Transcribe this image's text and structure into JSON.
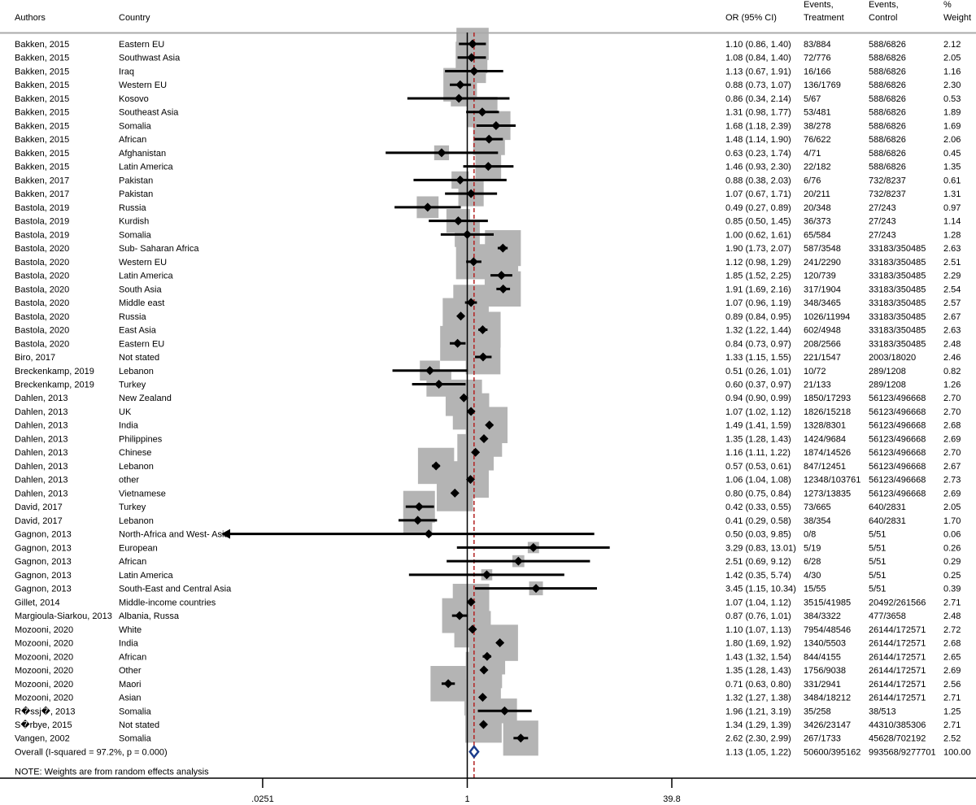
{
  "chart_data": {
    "type": "forest",
    "headers": {
      "authors": "Authors",
      "country": "Country",
      "or_ci": "OR (95% CI)",
      "events_treatment": [
        "Events,",
        "Treatment"
      ],
      "events_control": [
        "Events,",
        "Control"
      ],
      "weight": [
        "%",
        "Weight"
      ]
    },
    "rows": [
      {
        "author": "Bakken, 2015",
        "country": "Eastern EU",
        "or": 1.1,
        "lo": 0.86,
        "hi": 1.4,
        "or_text": "1.10 (0.86, 1.40)",
        "treat": "83/884",
        "control": "588/6826",
        "weight": "2.12"
      },
      {
        "author": "Bakken, 2015",
        "country": "Southwast Asia",
        "or": 1.08,
        "lo": 0.84,
        "hi": 1.4,
        "or_text": "1.08 (0.84, 1.40)",
        "treat": "72/776",
        "control": "588/6826",
        "weight": "2.05"
      },
      {
        "author": "Bakken, 2015",
        "country": "Iraq",
        "or": 1.13,
        "lo": 0.67,
        "hi": 1.91,
        "or_text": "1.13 (0.67, 1.91)",
        "treat": "16/166",
        "control": "588/6826",
        "weight": "1.16"
      },
      {
        "author": "Bakken, 2015",
        "country": "Western EU",
        "or": 0.88,
        "lo": 0.73,
        "hi": 1.07,
        "or_text": "0.88 (0.73, 1.07)",
        "treat": "136/1769",
        "control": "588/6826",
        "weight": "2.30"
      },
      {
        "author": "Bakken, 2015",
        "country": "Kosovo",
        "or": 0.86,
        "lo": 0.34,
        "hi": 2.14,
        "or_text": "0.86 (0.34, 2.14)",
        "treat": "5/67",
        "control": "588/6826",
        "weight": "0.53"
      },
      {
        "author": "Bakken, 2015",
        "country": "Southeast Asia",
        "or": 1.31,
        "lo": 0.98,
        "hi": 1.77,
        "or_text": "1.31 (0.98, 1.77)",
        "treat": "53/481",
        "control": "588/6826",
        "weight": "1.89"
      },
      {
        "author": "Bakken, 2015",
        "country": "Somalia",
        "or": 1.68,
        "lo": 1.18,
        "hi": 2.39,
        "or_text": "1.68 (1.18, 2.39)",
        "treat": "38/278",
        "control": "588/6826",
        "weight": "1.69"
      },
      {
        "author": "Bakken, 2015",
        "country": "African",
        "or": 1.48,
        "lo": 1.14,
        "hi": 1.9,
        "or_text": "1.48 (1.14, 1.90)",
        "treat": "76/622",
        "control": "588/6826",
        "weight": "2.06"
      },
      {
        "author": "Bakken, 2015",
        "country": "Afghanistan",
        "or": 0.63,
        "lo": 0.23,
        "hi": 1.74,
        "or_text": "0.63 (0.23, 1.74)",
        "treat": "4/71",
        "control": "588/6826",
        "weight": "0.45"
      },
      {
        "author": "Bakken, 2015",
        "country": "Latin America",
        "or": 1.46,
        "lo": 0.93,
        "hi": 2.3,
        "or_text": "1.46 (0.93, 2.30)",
        "treat": "22/182",
        "control": "588/6826",
        "weight": "1.35"
      },
      {
        "author": "Bakken, 2017",
        "country": "Pakistan",
        "or": 0.88,
        "lo": 0.38,
        "hi": 2.03,
        "or_text": "0.88 (0.38, 2.03)",
        "treat": "6/76",
        "control": "732/8237",
        "weight": "0.61"
      },
      {
        "author": "Bakken, 2017",
        "country": "Pakistan",
        "or": 1.07,
        "lo": 0.67,
        "hi": 1.71,
        "or_text": "1.07 (0.67, 1.71)",
        "treat": "20/211",
        "control": "732/8237",
        "weight": "1.31"
      },
      {
        "author": "Bastola, 2019",
        "country": "Russia",
        "or": 0.49,
        "lo": 0.27,
        "hi": 0.89,
        "or_text": "0.49 (0.27, 0.89)",
        "treat": "20/348",
        "control": "27/243",
        "weight": "0.97"
      },
      {
        "author": "Bastola, 2019",
        "country": "Kurdish",
        "or": 0.85,
        "lo": 0.5,
        "hi": 1.45,
        "or_text": "0.85 (0.50, 1.45)",
        "treat": "36/373",
        "control": "27/243",
        "weight": "1.14"
      },
      {
        "author": "Bastola, 2019",
        "country": "Somalia",
        "or": 1.0,
        "lo": 0.62,
        "hi": 1.61,
        "or_text": "1.00 (0.62, 1.61)",
        "treat": "65/584",
        "control": "27/243",
        "weight": "1.28"
      },
      {
        "author": "Bastola, 2020",
        "country": "Sub- Saharan Africa",
        "or": 1.9,
        "lo": 1.73,
        "hi": 2.07,
        "or_text": "1.90 (1.73, 2.07)",
        "treat": "587/3548",
        "control": "33183/350485",
        "weight": "2.63"
      },
      {
        "author": "Bastola, 2020",
        "country": "Western EU",
        "or": 1.12,
        "lo": 0.98,
        "hi": 1.29,
        "or_text": "1.12 (0.98, 1.29)",
        "treat": "241/2290",
        "control": "33183/350485",
        "weight": "2.51"
      },
      {
        "author": "Bastola, 2020",
        "country": "Latin America",
        "or": 1.85,
        "lo": 1.52,
        "hi": 2.25,
        "or_text": "1.85 (1.52, 2.25)",
        "treat": "120/739",
        "control": "33183/350485",
        "weight": "2.29"
      },
      {
        "author": "Bastola, 2020",
        "country": "South Asia",
        "or": 1.91,
        "lo": 1.69,
        "hi": 2.16,
        "or_text": "1.91 (1.69, 2.16)",
        "treat": "317/1904",
        "control": "33183/350485",
        "weight": "2.54"
      },
      {
        "author": "Bastola, 2020",
        "country": "Middle east",
        "or": 1.07,
        "lo": 0.96,
        "hi": 1.19,
        "or_text": "1.07 (0.96, 1.19)",
        "treat": "348/3465",
        "control": "33183/350485",
        "weight": "2.57"
      },
      {
        "author": "Bastola, 2020",
        "country": "Russia",
        "or": 0.89,
        "lo": 0.84,
        "hi": 0.95,
        "or_text": "0.89 (0.84, 0.95)",
        "treat": "1026/11994",
        "control": "33183/350485",
        "weight": "2.67"
      },
      {
        "author": "Bastola, 2020",
        "country": "East Asia",
        "or": 1.32,
        "lo": 1.22,
        "hi": 1.44,
        "or_text": "1.32 (1.22, 1.44)",
        "treat": "602/4948",
        "control": "33183/350485",
        "weight": "2.63"
      },
      {
        "author": "Bastola, 2020",
        "country": "Eastern EU",
        "or": 0.84,
        "lo": 0.73,
        "hi": 0.97,
        "or_text": "0.84 (0.73, 0.97)",
        "treat": "208/2566",
        "control": "33183/350485",
        "weight": "2.48"
      },
      {
        "author": "Biro, 2017",
        "country": "Not stated",
        "or": 1.33,
        "lo": 1.15,
        "hi": 1.55,
        "or_text": "1.33 (1.15, 1.55)",
        "treat": "221/1547",
        "control": "2003/18020",
        "weight": "2.46"
      },
      {
        "author": "Breckenkamp, 2019",
        "country": "Lebanon",
        "or": 0.51,
        "lo": 0.26,
        "hi": 1.01,
        "or_text": "0.51 (0.26, 1.01)",
        "treat": "10/72",
        "control": "289/1208",
        "weight": "0.82"
      },
      {
        "author": "Breckenkamp, 2019",
        "country": "Turkey",
        "or": 0.6,
        "lo": 0.37,
        "hi": 0.97,
        "or_text": "0.60 (0.37, 0.97)",
        "treat": "21/133",
        "control": "289/1208",
        "weight": "1.26"
      },
      {
        "author": "Dahlen, 2013",
        "country": "New Zealand",
        "or": 0.94,
        "lo": 0.9,
        "hi": 0.99,
        "or_text": "0.94 (0.90, 0.99)",
        "treat": "1850/17293",
        "control": "56123/496668",
        "weight": "2.70"
      },
      {
        "author": "Dahlen, 2013",
        "country": "UK",
        "or": 1.07,
        "lo": 1.02,
        "hi": 1.12,
        "or_text": "1.07 (1.02, 1.12)",
        "treat": "1826/15218",
        "control": "56123/496668",
        "weight": "2.70"
      },
      {
        "author": "Dahlen, 2013",
        "country": "India",
        "or": 1.49,
        "lo": 1.41,
        "hi": 1.59,
        "or_text": "1.49 (1.41, 1.59)",
        "treat": "1328/8301",
        "control": "56123/496668",
        "weight": "2.68"
      },
      {
        "author": "Dahlen, 2013",
        "country": "Philippines",
        "or": 1.35,
        "lo": 1.28,
        "hi": 1.43,
        "or_text": "1.35 (1.28, 1.43)",
        "treat": "1424/9684",
        "control": "56123/496668",
        "weight": "2.69"
      },
      {
        "author": "Dahlen, 2013",
        "country": "Chinese",
        "or": 1.16,
        "lo": 1.11,
        "hi": 1.22,
        "or_text": "1.16 (1.11, 1.22)",
        "treat": "1874/14526",
        "control": "56123/496668",
        "weight": "2.70"
      },
      {
        "author": "Dahlen, 2013",
        "country": "Lebanon",
        "or": 0.57,
        "lo": 0.53,
        "hi": 0.61,
        "or_text": "0.57 (0.53, 0.61)",
        "treat": "847/12451",
        "control": "56123/496668",
        "weight": "2.67"
      },
      {
        "author": "Dahlen, 2013",
        "country": "other",
        "or": 1.06,
        "lo": 1.04,
        "hi": 1.08,
        "or_text": "1.06 (1.04, 1.08)",
        "treat": "12348/103761",
        "control": "56123/496668",
        "weight": "2.73"
      },
      {
        "author": "Dahlen, 2013",
        "country": "Vietnamese",
        "or": 0.8,
        "lo": 0.75,
        "hi": 0.84,
        "or_text": "0.80 (0.75, 0.84)",
        "treat": "1273/13835",
        "control": "56123/496668",
        "weight": "2.69"
      },
      {
        "author": "David, 2017",
        "country": "Turkey",
        "or": 0.42,
        "lo": 0.33,
        "hi": 0.55,
        "or_text": "0.42 (0.33, 0.55)",
        "treat": "73/665",
        "control": "640/2831",
        "weight": "2.05"
      },
      {
        "author": "David, 2017",
        "country": "Lebanon",
        "or": 0.41,
        "lo": 0.29,
        "hi": 0.58,
        "or_text": "0.41 (0.29, 0.58)",
        "treat": "38/354",
        "control": "640/2831",
        "weight": "1.70"
      },
      {
        "author": "Gagnon, 2013",
        "country": "North-Africa and West- Asia",
        "or": 0.5,
        "lo": 0.03,
        "hi": 9.85,
        "or_text": "0.50 (0.03, 9.85)",
        "treat": "0/8",
        "control": "5/51",
        "weight": "0.06",
        "arrow_left": true
      },
      {
        "author": "Gagnon, 2013",
        "country": "European",
        "or": 3.29,
        "lo": 0.83,
        "hi": 13.01,
        "or_text": "3.29 (0.83, 13.01)",
        "treat": "5/19",
        "control": "5/51",
        "weight": "0.26"
      },
      {
        "author": "Gagnon, 2013",
        "country": "African",
        "or": 2.51,
        "lo": 0.69,
        "hi": 9.12,
        "or_text": "2.51 (0.69, 9.12)",
        "treat": "6/28",
        "control": "5/51",
        "weight": "0.29"
      },
      {
        "author": "Gagnon, 2013",
        "country": "Latin America",
        "or": 1.42,
        "lo": 0.35,
        "hi": 5.74,
        "or_text": "1.42 (0.35, 5.74)",
        "treat": "4/30",
        "control": "5/51",
        "weight": "0.25"
      },
      {
        "author": "Gagnon, 2013",
        "country": "South-East and Central Asia",
        "or": 3.45,
        "lo": 1.15,
        "hi": 10.34,
        "or_text": "3.45 (1.15, 10.34)",
        "treat": "15/55",
        "control": "5/51",
        "weight": "0.39"
      },
      {
        "author": "Gillet, 2014",
        "country": "Middle-income countries",
        "or": 1.07,
        "lo": 1.04,
        "hi": 1.12,
        "or_text": "1.07 (1.04, 1.12)",
        "treat": "3515/41985",
        "control": "20492/261566",
        "weight": "2.71"
      },
      {
        "author": "Margioula-Siarkou, 2013",
        "country": "Albania, Russa",
        "or": 0.87,
        "lo": 0.76,
        "hi": 1.01,
        "or_text": "0.87 (0.76, 1.01)",
        "treat": "384/3322",
        "control": "477/3658",
        "weight": "2.48"
      },
      {
        "author": "Mozooni, 2020",
        "country": "White",
        "or": 1.1,
        "lo": 1.07,
        "hi": 1.13,
        "or_text": "1.10 (1.07, 1.13)",
        "treat": "7954/48546",
        "control": "26144/172571",
        "weight": "2.72"
      },
      {
        "author": "Mozooni, 2020",
        "country": "India",
        "or": 1.8,
        "lo": 1.69,
        "hi": 1.92,
        "or_text": "1.80 (1.69, 1.92)",
        "treat": "1340/5503",
        "control": "26144/172571",
        "weight": "2.68"
      },
      {
        "author": "Mozooni, 2020",
        "country": "African",
        "or": 1.43,
        "lo": 1.32,
        "hi": 1.54,
        "or_text": "1.43 (1.32, 1.54)",
        "treat": "844/4155",
        "control": "26144/172571",
        "weight": "2.65"
      },
      {
        "author": "Mozooni, 2020",
        "country": "Other",
        "or": 1.35,
        "lo": 1.28,
        "hi": 1.43,
        "or_text": "1.35 (1.28, 1.43)",
        "treat": "1756/9038",
        "control": "26144/172571",
        "weight": "2.69"
      },
      {
        "author": "Mozooni, 2020",
        "country": "Maori",
        "or": 0.71,
        "lo": 0.63,
        "hi": 0.8,
        "or_text": "0.71 (0.63, 0.80)",
        "treat": "331/2941",
        "control": "26144/172571",
        "weight": "2.56"
      },
      {
        "author": "Mozooni, 2020",
        "country": "Asian",
        "or": 1.32,
        "lo": 1.27,
        "hi": 1.38,
        "or_text": "1.32 (1.27, 1.38)",
        "treat": "3484/18212",
        "control": "26144/172571",
        "weight": "2.71"
      },
      {
        "author": "R�ssj�, 2013",
        "country": "Somalia",
        "or": 1.96,
        "lo": 1.21,
        "hi": 3.19,
        "or_text": "1.96 (1.21, 3.19)",
        "treat": "35/258",
        "control": "38/513",
        "weight": "1.25"
      },
      {
        "author": "S�rbye, 2015",
        "country": "Not stated",
        "or": 1.34,
        "lo": 1.29,
        "hi": 1.39,
        "or_text": "1.34 (1.29, 1.39)",
        "treat": "3426/23147",
        "control": "44310/385306",
        "weight": "2.71"
      },
      {
        "author": "Vangen, 2002",
        "country": "Somalia",
        "or": 2.62,
        "lo": 2.3,
        "hi": 2.99,
        "or_text": "2.62 (2.30, 2.99)",
        "treat": "267/1733",
        "control": "45628/702192",
        "weight": "2.52"
      }
    ],
    "overall": {
      "label": "Overall  (I-squared = 97.2%, p = 0.000)",
      "or": 1.13,
      "lo": 1.05,
      "hi": 1.22,
      "or_text": "1.13 (1.05, 1.22)",
      "treat": "50600/395162",
      "control": "993568/9277701",
      "weight": "100.00"
    },
    "note": "NOTE: Weights are from random effects analysis",
    "x_axis": {
      "scale": "log",
      "ticks": [
        {
          "value": 0.0251,
          "label": ".0251"
        },
        {
          "value": 1,
          "label": "1"
        },
        {
          "value": 39.8,
          "label": "39.8"
        }
      ],
      "null_line": 1
    },
    "colors": {
      "box": "#b4b4b4",
      "line": "#000000",
      "diamond": "#1c3c8c",
      "overall_line": "#b22222",
      "header_rule": "#aaaaaa"
    }
  }
}
